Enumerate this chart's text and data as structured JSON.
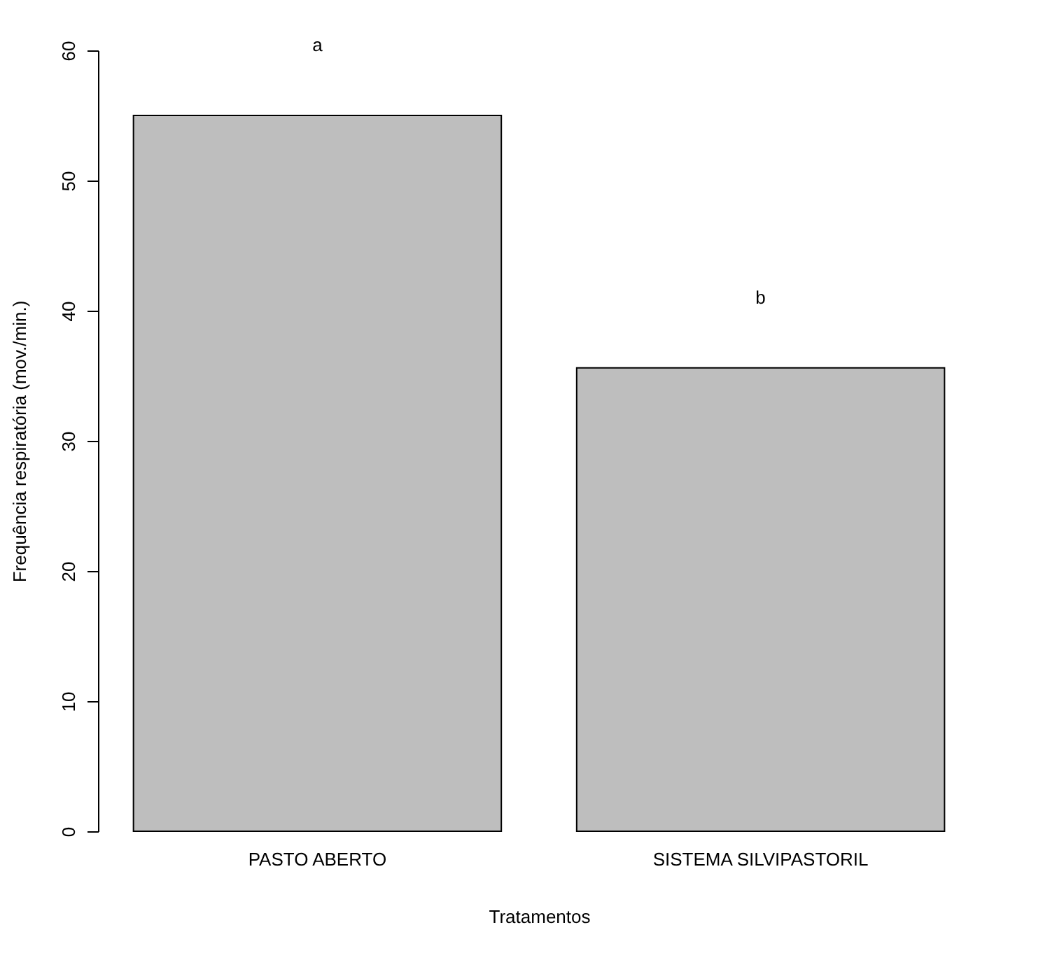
{
  "chart_data": {
    "type": "bar",
    "xlabel": "Tratamentos",
    "ylabel": "Frequência respiratória (mov./min.)",
    "categories": [
      "PASTO ABERTO",
      "SISTEMA SILVIPASTORIL"
    ],
    "values": [
      55,
      35.6
    ],
    "color": "#bebebe",
    "ylim": [
      0,
      60
    ],
    "yticks": [
      0,
      10,
      20,
      30,
      40,
      50,
      60
    ],
    "grid": false,
    "annotations": [
      "a",
      "b"
    ]
  }
}
